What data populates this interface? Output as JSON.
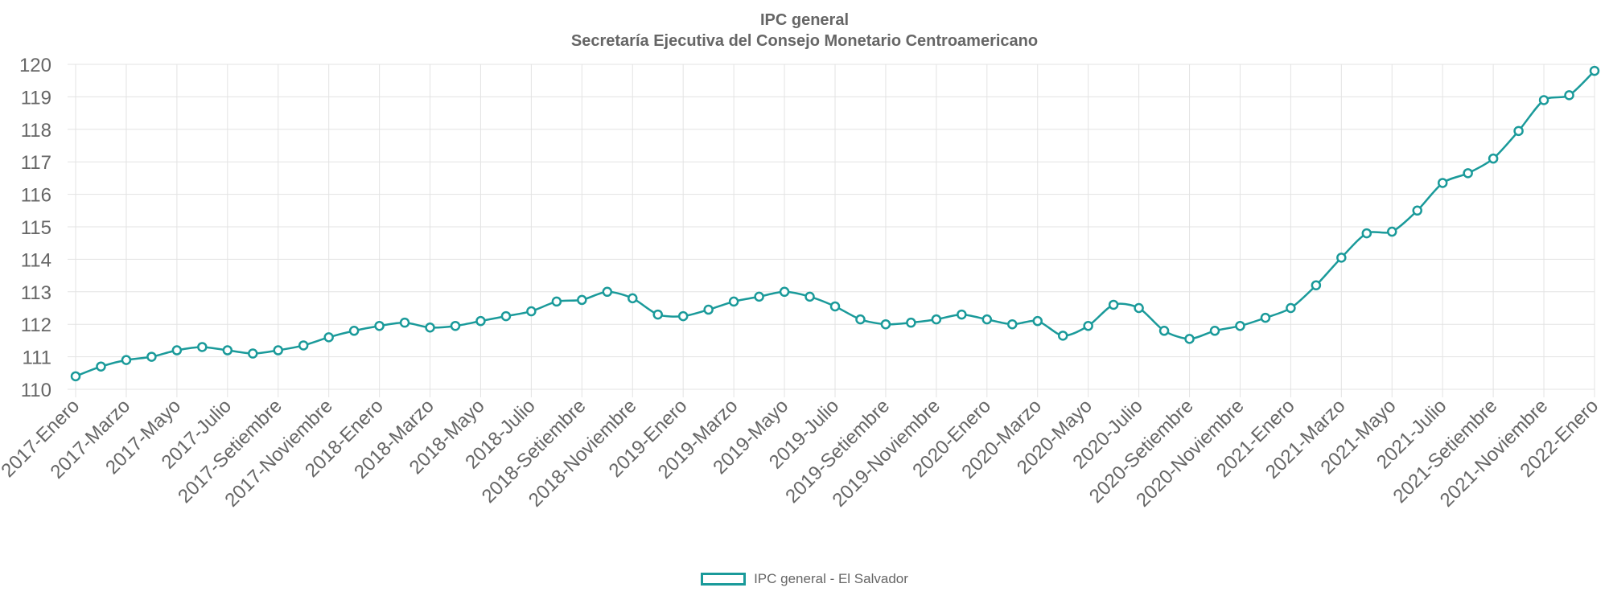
{
  "chart_data": {
    "type": "line",
    "title": "IPC general",
    "subtitle": "Secretaría Ejecutiva del Consejo Monetario Centroamericano",
    "xlabel": "",
    "ylabel": "",
    "ylim": [
      110,
      120
    ],
    "yticks": [
      "110",
      "111",
      "112",
      "113",
      "114",
      "115",
      "116",
      "117",
      "118",
      "119",
      "120"
    ],
    "grid": true,
    "legend_position": "bottom",
    "colors": {
      "line": "#1a9a9a",
      "grid": "#e3e3e3",
      "text": "#666666"
    },
    "categories": [
      "2017-Enero",
      "2017-Febrero",
      "2017-Marzo",
      "2017-Abril",
      "2017-Mayo",
      "2017-Junio",
      "2017-Julio",
      "2017-Agosto",
      "2017-Setiembre",
      "2017-Octubre",
      "2017-Noviembre",
      "2017-Diciembre",
      "2018-Enero",
      "2018-Febrero",
      "2018-Marzo",
      "2018-Abril",
      "2018-Mayo",
      "2018-Junio",
      "2018-Julio",
      "2018-Agosto",
      "2018-Setiembre",
      "2018-Octubre",
      "2018-Noviembre",
      "2018-Diciembre",
      "2019-Enero",
      "2019-Febrero",
      "2019-Marzo",
      "2019-Abril",
      "2019-Mayo",
      "2019-Junio",
      "2019-Julio",
      "2019-Agosto",
      "2019-Setiembre",
      "2019-Octubre",
      "2019-Noviembre",
      "2019-Diciembre",
      "2020-Enero",
      "2020-Febrero",
      "2020-Marzo",
      "2020-Abril",
      "2020-Mayo",
      "2020-Junio",
      "2020-Julio",
      "2020-Agosto",
      "2020-Setiembre",
      "2020-Octubre",
      "2020-Noviembre",
      "2020-Diciembre",
      "2021-Enero",
      "2021-Febrero",
      "2021-Marzo",
      "2021-Abril",
      "2021-Mayo",
      "2021-Junio",
      "2021-Julio",
      "2021-Agosto",
      "2021-Setiembre",
      "2021-Octubre",
      "2021-Noviembre",
      "2021-Diciembre",
      "2022-Enero"
    ],
    "tick_labels": [
      "2017-Enero",
      "2017-Marzo",
      "2017-Mayo",
      "2017-Julio",
      "2017-Setiembre",
      "2017-Noviembre",
      "2018-Enero",
      "2018-Marzo",
      "2018-Mayo",
      "2018-Julio",
      "2018-Setiembre",
      "2018-Noviembre",
      "2019-Enero",
      "2019-Marzo",
      "2019-Mayo",
      "2019-Julio",
      "2019-Setiembre",
      "2019-Noviembre",
      "2020-Enero",
      "2020-Marzo",
      "2020-Mayo",
      "2020-Julio",
      "2020-Setiembre",
      "2020-Noviembre",
      "2021-Enero",
      "2021-Marzo",
      "2021-Mayo",
      "2021-Julio",
      "2021-Setiembre",
      "2021-Noviembre",
      "2022-Enero"
    ],
    "series": [
      {
        "name": "IPC general - El Salvador",
        "values": [
          110.4,
          110.7,
          110.9,
          111.0,
          111.2,
          111.3,
          111.2,
          111.1,
          111.2,
          111.35,
          111.6,
          111.8,
          111.95,
          112.05,
          111.9,
          111.95,
          112.1,
          112.25,
          112.4,
          112.7,
          112.75,
          113.0,
          112.8,
          112.3,
          112.25,
          112.45,
          112.7,
          112.85,
          113.0,
          112.85,
          112.55,
          112.15,
          112.0,
          112.05,
          112.15,
          112.3,
          112.15,
          112.0,
          112.1,
          111.65,
          111.95,
          112.6,
          112.5,
          111.8,
          111.55,
          111.8,
          111.95,
          112.2,
          112.5,
          113.2,
          114.05,
          114.8,
          114.85,
          115.5,
          116.35,
          116.65,
          117.1,
          117.95,
          118.9,
          119.05,
          119.8
        ]
      }
    ]
  }
}
